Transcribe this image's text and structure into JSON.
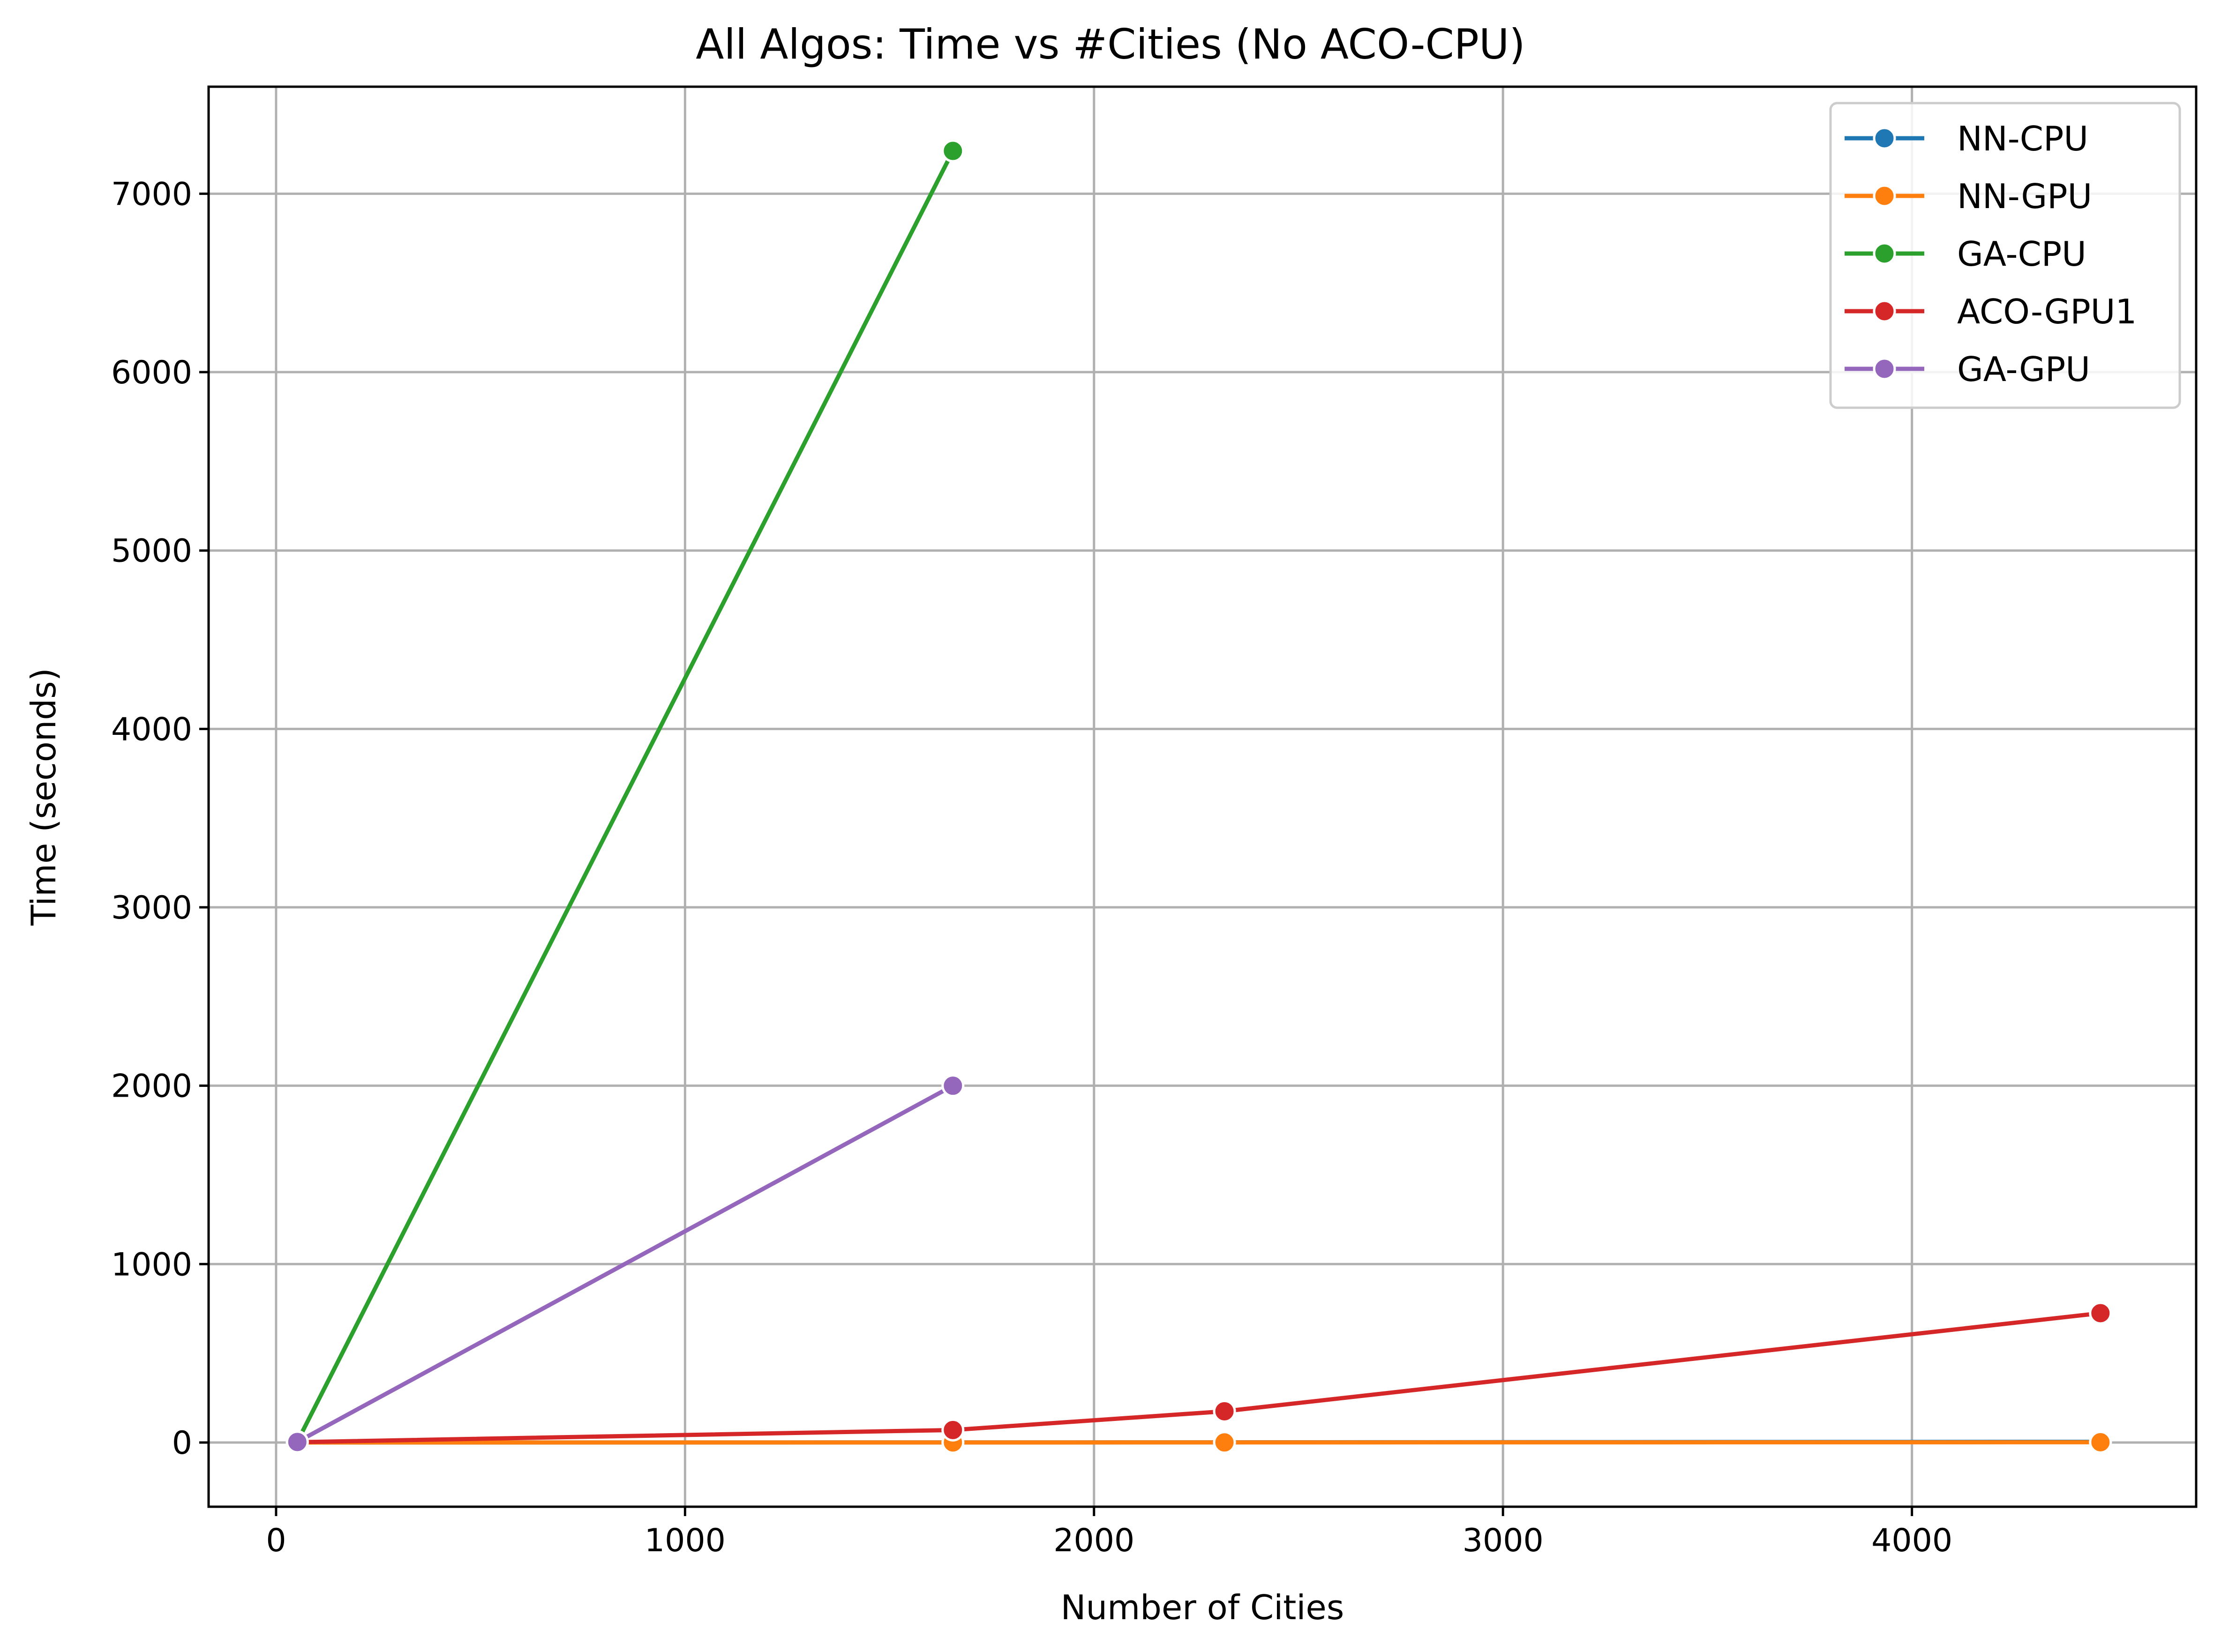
{
  "chart_data": {
    "type": "line",
    "title": "All Algos: Time vs #Cities (No ACO-CPU)",
    "xlabel": "Number of Cities",
    "ylabel": "Time (seconds)",
    "xlim": [
      -165,
      4695
    ],
    "ylim": [
      -360,
      7600
    ],
    "xticks": [
      0,
      1000,
      2000,
      3000,
      4000
    ],
    "yticks": [
      0,
      1000,
      2000,
      3000,
      4000,
      5000,
      6000,
      7000
    ],
    "grid": true,
    "legend_position": "top-right",
    "series": [
      {
        "name": "NN-CPU",
        "color": "#1f77b4",
        "x": [
          52,
          1655,
          2319,
          4461
        ],
        "y": [
          0.01,
          0.5,
          1.0,
          4.0
        ]
      },
      {
        "name": "NN-GPU",
        "color": "#ff7f0e",
        "x": [
          52,
          1655,
          2319,
          4461
        ],
        "y": [
          0.05,
          0.3,
          0.5,
          1.5
        ]
      },
      {
        "name": "GA-CPU",
        "color": "#2ca02c",
        "x": [
          52,
          1655
        ],
        "y": [
          5,
          7240
        ]
      },
      {
        "name": "ACO-GPU1",
        "color": "#d62728",
        "x": [
          52,
          1655,
          2319,
          4461
        ],
        "y": [
          2,
          70,
          175,
          725
        ]
      },
      {
        "name": "GA-GPU",
        "color": "#9467bd",
        "x": [
          52,
          1655
        ],
        "y": [
          3,
          2000
        ]
      }
    ]
  }
}
